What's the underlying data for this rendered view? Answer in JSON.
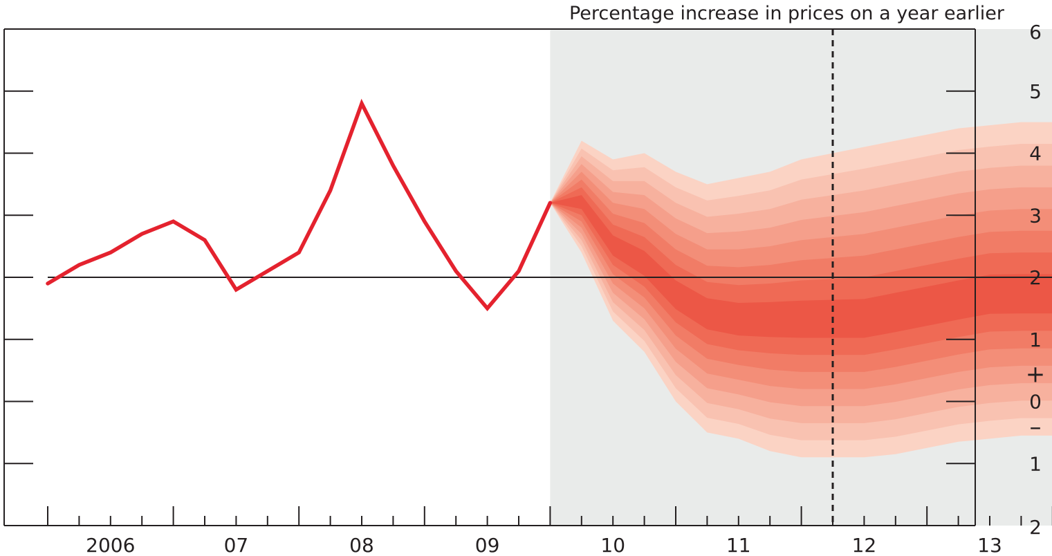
{
  "chart_data": {
    "type": "line",
    "title": "Percentage increase in prices on a year earlier",
    "xlabel": "",
    "ylabel": "",
    "ylim": [
      -2,
      6
    ],
    "y_ticks": [
      6,
      5,
      4,
      3,
      2,
      1,
      0,
      -1,
      -2
    ],
    "y_tick_labels": [
      "6",
      "5",
      "4",
      "3",
      "2",
      "1",
      "0",
      "1",
      "2"
    ],
    "y_sign_plus": "+",
    "y_sign_minus": "–",
    "x_year_labels": [
      {
        "year": 2006,
        "label": "2006"
      },
      {
        "year": 2007,
        "label": "07"
      },
      {
        "year": 2008,
        "label": "08"
      },
      {
        "year": 2009,
        "label": "09"
      },
      {
        "year": 2010,
        "label": "10"
      },
      {
        "year": 2011,
        "label": "11"
      },
      {
        "year": 2012,
        "label": "12"
      },
      {
        "year": 2013,
        "label": "13"
      }
    ],
    "quarters": [
      "2005Q4",
      "2006Q1",
      "2006Q2",
      "2006Q3",
      "2006Q4",
      "2007Q1",
      "2007Q2",
      "2007Q3",
      "2007Q4",
      "2008Q1",
      "2008Q2",
      "2008Q3",
      "2008Q4",
      "2009Q1",
      "2009Q2",
      "2009Q3",
      "2009Q4",
      "2010Q1",
      "2010Q2",
      "2010Q3",
      "2010Q4",
      "2011Q1",
      "2011Q2",
      "2011Q3",
      "2011Q4",
      "2012Q1",
      "2012Q2",
      "2012Q3",
      "2012Q4",
      "2013Q1",
      "2013Q2",
      "2013Q3",
      "2013Q4"
    ],
    "reference_line": 2,
    "projection_start": "2009Q4",
    "projection_marker": "2012Q1",
    "colors": {
      "outturn": "#e4222e",
      "projection_background": "#e9ebea",
      "fan_bands": [
        "#fbd3c4",
        "#f9c2b1",
        "#f7b19e",
        "#f59f8b",
        "#f38e78",
        "#f17c66",
        "#ef6a55",
        "#ec5746"
      ]
    },
    "series": [
      {
        "quarters": [
          "2005Q4",
          "2006Q1",
          "2006Q2",
          "2006Q3",
          "2006Q4",
          "2007Q1",
          "2007Q2",
          "2007Q3",
          "2007Q4",
          "2008Q1",
          "2008Q2",
          "2008Q3",
          "2008Q4",
          "2009Q1",
          "2009Q2",
          "2009Q3",
          "2009Q4"
        ],
        "values": [
          1.9,
          2.2,
          2.4,
          2.7,
          2.9,
          2.6,
          1.8,
          2.1,
          2.4,
          3.4,
          4.8,
          3.8,
          2.9,
          2.1,
          1.5,
          2.1,
          3.2
        ]
      }
    ],
    "fan": {
      "quarters": [
        "2009Q4",
        "2010Q1",
        "2010Q2",
        "2010Q3",
        "2010Q4",
        "2011Q1",
        "2011Q2",
        "2011Q3",
        "2011Q4",
        "2012Q1",
        "2012Q2",
        "2012Q3",
        "2012Q4",
        "2013Q1",
        "2013Q2",
        "2013Q3",
        "2013Q4"
      ],
      "central": [
        3.2,
        3.2,
        2.5,
        2.2,
        1.7,
        1.4,
        1.3,
        1.3,
        1.3,
        1.3,
        1.3,
        1.4,
        1.5,
        1.6,
        1.7,
        1.7,
        1.7
      ],
      "upper": [
        3.2,
        4.2,
        3.9,
        4.0,
        3.7,
        3.5,
        3.6,
        3.7,
        3.9,
        4.0,
        4.1,
        4.2,
        4.3,
        4.4,
        4.45,
        4.5,
        4.5
      ],
      "lower": [
        3.2,
        2.4,
        1.3,
        0.8,
        0.0,
        -0.5,
        -0.6,
        -0.8,
        -0.9,
        -0.9,
        -0.9,
        -0.85,
        -0.75,
        -0.65,
        -0.6,
        -0.55,
        -0.55
      ]
    }
  }
}
